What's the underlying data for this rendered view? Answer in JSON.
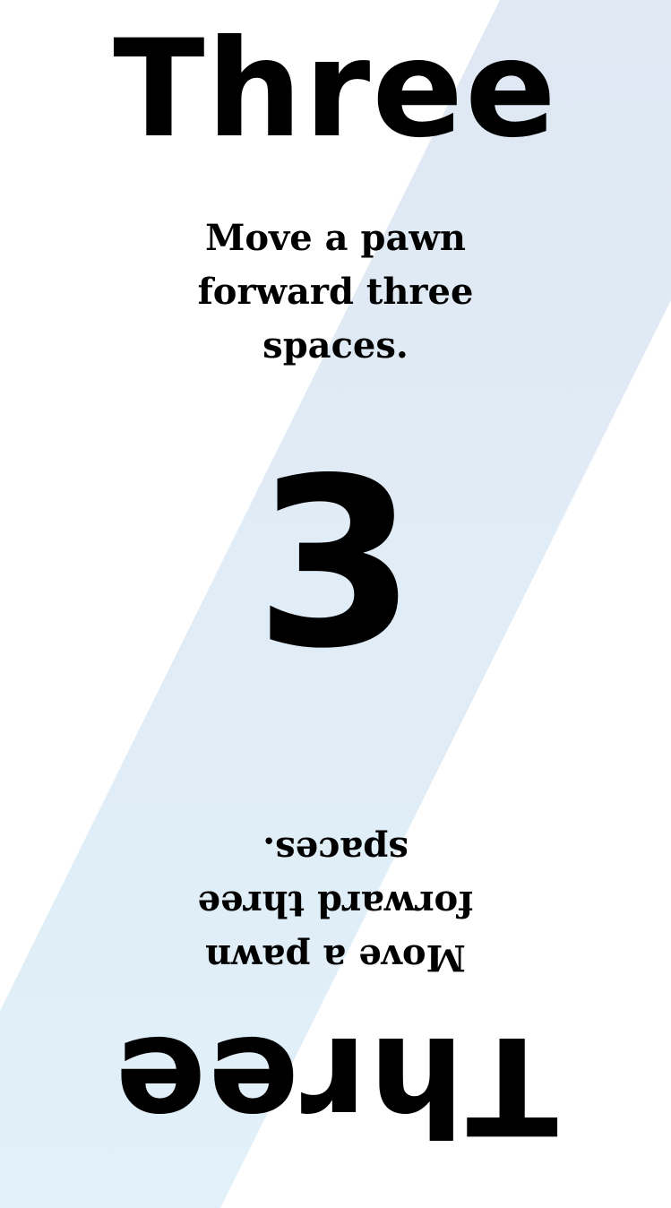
{
  "card": {
    "title": "Three",
    "instruction": "Move a pawn forward three spaces.",
    "number": "3",
    "colors": {
      "background": "#ffffff",
      "stripe_top": "#dfe8f3",
      "stripe_bottom": "#e1f0f9",
      "text": "#000000"
    }
  }
}
